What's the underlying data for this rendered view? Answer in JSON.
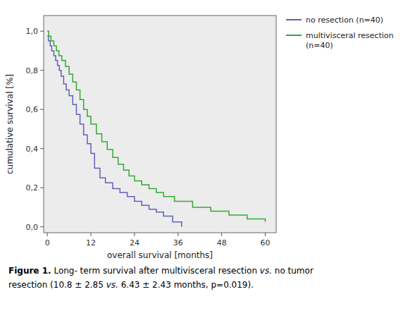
{
  "chart_data": {
    "type": "step",
    "title": "",
    "xlabel": "overall survival [months]",
    "ylabel": "cumulative survival [%]",
    "xlim": [
      -1,
      63
    ],
    "ylim": [
      -0.03,
      1.08
    ],
    "xticks": [
      0,
      12,
      24,
      36,
      48,
      60
    ],
    "yticks": [
      {
        "value": 0.0,
        "label": "0,0"
      },
      {
        "value": 0.2,
        "label": "0,2"
      },
      {
        "value": 0.4,
        "label": "0,4"
      },
      {
        "value": 0.6,
        "label": "0,6"
      },
      {
        "value": 0.8,
        "label": "0,8"
      },
      {
        "value": 1.0,
        "label": "1,0"
      }
    ],
    "grid": false,
    "legend": "right",
    "series": [
      {
        "name": "no resection (n=40)",
        "color": "#6060bb",
        "x": [
          0,
          0.3,
          0.8,
          1.2,
          1.8,
          2.3,
          2.8,
          3.3,
          3.8,
          4.5,
          5.2,
          6.0,
          7.0,
          8.0,
          9.0,
          10.0,
          11.0,
          12.0,
          13.0,
          14.5,
          16.0,
          18.0,
          20.0,
          22.0,
          24.0,
          26.0,
          28.0,
          30.0,
          32.0,
          34.5,
          37.0
        ],
        "values": [
          0.975,
          0.95,
          0.925,
          0.9,
          0.875,
          0.85,
          0.825,
          0.8,
          0.77,
          0.73,
          0.7,
          0.67,
          0.625,
          0.575,
          0.525,
          0.47,
          0.425,
          0.375,
          0.3,
          0.25,
          0.225,
          0.195,
          0.175,
          0.155,
          0.13,
          0.11,
          0.09,
          0.075,
          0.055,
          0.025,
          0.0
        ]
      },
      {
        "name": "multivisceral resection\n(n=40)",
        "color": "#33aa33",
        "x": [
          0,
          0.4,
          1.0,
          1.8,
          2.5,
          3.2,
          4.0,
          5.0,
          6.0,
          7.0,
          8.0,
          9.0,
          10.0,
          11.0,
          12.0,
          13.5,
          15.0,
          16.5,
          18.0,
          19.5,
          21.0,
          22.5,
          24.0,
          26.0,
          28.0,
          30.0,
          32.0,
          35.0,
          40.0,
          45.0,
          50.0,
          55.0,
          60.0
        ],
        "values": [
          1.0,
          0.975,
          0.95,
          0.925,
          0.9,
          0.875,
          0.85,
          0.82,
          0.78,
          0.74,
          0.7,
          0.65,
          0.6,
          0.565,
          0.525,
          0.475,
          0.435,
          0.395,
          0.355,
          0.32,
          0.29,
          0.26,
          0.235,
          0.215,
          0.195,
          0.175,
          0.155,
          0.13,
          0.1,
          0.08,
          0.06,
          0.04,
          0.025
        ]
      }
    ],
    "annotations": [
      [
        "Figure 1.",
        " Long- term survival after multivisceral resection ",
        "vs.",
        " no tumor"
      ],
      [
        "resection (10.8 ± 2.85 ",
        "vs.",
        " 6.43 ± 2.43 months, p=0.019)."
      ]
    ]
  }
}
